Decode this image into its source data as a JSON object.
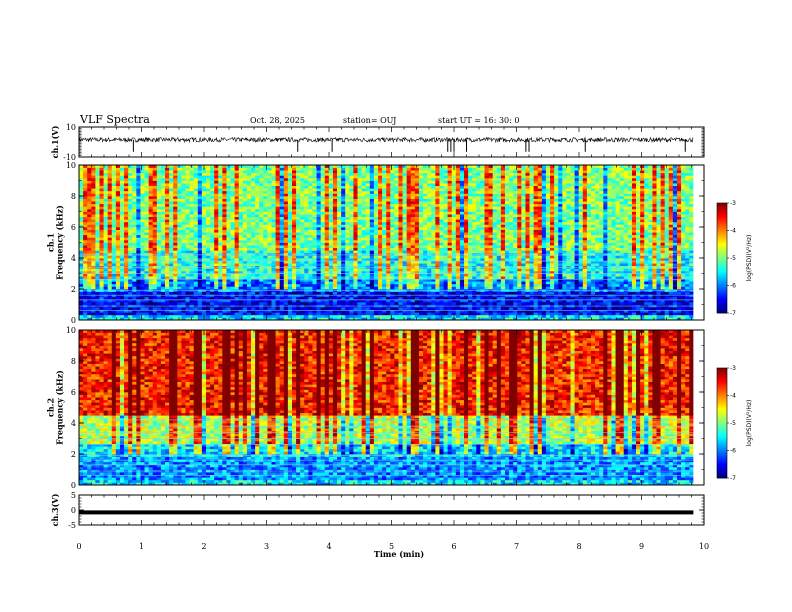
{
  "header": {
    "title": "VLF Spectra",
    "date": "Oct. 28, 2025",
    "station": "station= OUJ",
    "start": "start  UT =   16: 30: 0"
  },
  "chart_data": [
    {
      "name": "ch1-waveform",
      "type": "line",
      "ylabel": "ch.1(V)",
      "ylim": [
        -10,
        10
      ],
      "yticks": [
        "10",
        "-10"
      ],
      "baseline": 1.5,
      "noise_amplitude": 1.5,
      "spikes_down_min": [
        0.87,
        3.5,
        4.05,
        5.9,
        5.95,
        6.0,
        6.2,
        7.15,
        7.2,
        8.1,
        9.7
      ],
      "color": "#000000"
    },
    {
      "name": "ch1-spectrogram",
      "type": "heatmap",
      "ylabel": "ch.1\nFrequency (kHz)",
      "ylim": [
        0,
        10
      ],
      "yticks": [
        "0",
        "2",
        "4",
        "6",
        "8",
        "10"
      ],
      "colorbar": {
        "label": "log(PSD)(V²/Hz)",
        "range": [
          -7,
          -3
        ],
        "ticks": [
          "-3",
          "-4",
          "-5",
          "-6",
          "-7"
        ]
      }
    },
    {
      "name": "ch2-spectrogram",
      "type": "heatmap",
      "ylabel": "ch.2\nFrequency (kHz)",
      "ylim": [
        0,
        10
      ],
      "yticks": [
        "0",
        "2",
        "4",
        "6",
        "8",
        "10"
      ],
      "colorbar": {
        "label": "log(PSD)(V²/Hz)",
        "range": [
          -7,
          -3
        ],
        "ticks": [
          "-3",
          "-4",
          "-5",
          "-6",
          "-7"
        ]
      }
    },
    {
      "name": "ch3-waveform",
      "type": "line",
      "ylabel": "ch.3(V)",
      "ylim": [
        -5,
        5
      ],
      "yticks": [
        "5",
        "0",
        "-5"
      ],
      "baseline": -0.8,
      "color": "#000000"
    }
  ],
  "x_axis": {
    "label": "Time  (min)",
    "range": [
      0,
      10
    ],
    "ticks": [
      "0",
      "1",
      "2",
      "3",
      "4",
      "5",
      "6",
      "7",
      "8",
      "9",
      "10"
    ],
    "data_end_min": 9.83
  }
}
